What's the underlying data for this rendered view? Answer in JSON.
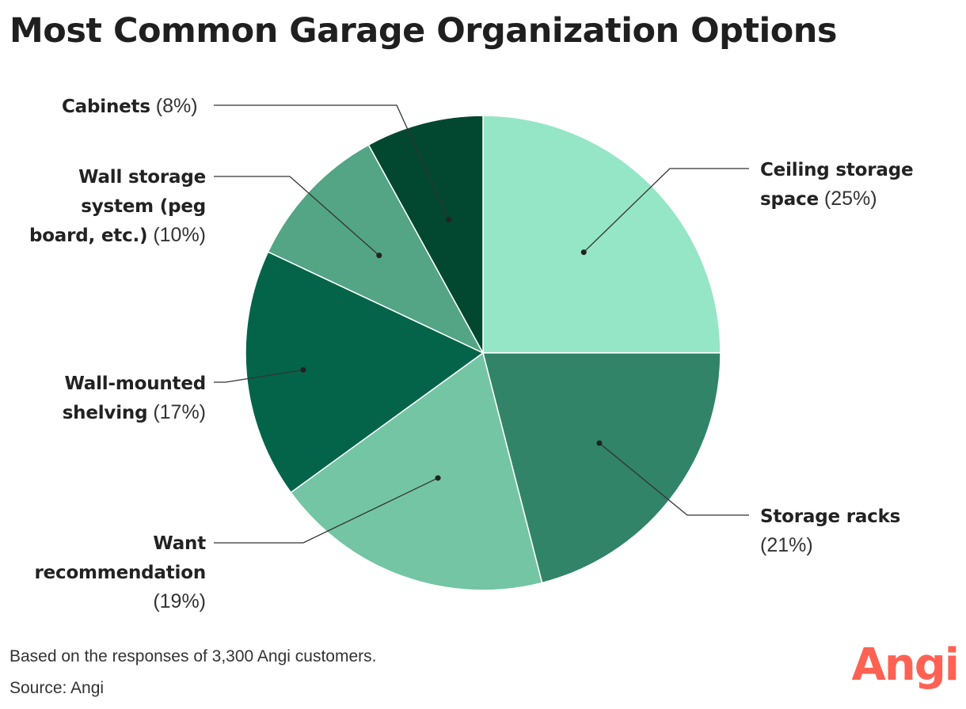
{
  "title": "Most Common Garage Organization Options",
  "chart_data": {
    "type": "pie",
    "slices": [
      {
        "label": "Ceiling storage space",
        "value": 25,
        "value_text": "(25%)",
        "color": "#95e6c6"
      },
      {
        "label": "Storage racks",
        "value": 21,
        "value_text": "(21%)",
        "color": "#318468"
      },
      {
        "label": "Want recommendation",
        "value": 19,
        "value_text": "(19%)",
        "color": "#74c5a4"
      },
      {
        "label": "Wall-mounted shelving",
        "value": 17,
        "value_text": "(17%)",
        "color": "#03644a"
      },
      {
        "label": "Wall storage system (peg board, etc.)",
        "value": 10,
        "value_text": "(10%)",
        "color": "#53a585"
      },
      {
        "label": "Cabinets",
        "value": 8,
        "value_text": "(8%)",
        "color": "#024830"
      }
    ]
  },
  "labels": {
    "ceiling": {
      "line1": "Ceiling storage",
      "line2": "space",
      "pct": "(25%)"
    },
    "racks": {
      "line1": "Storage racks",
      "pct": "(21%)"
    },
    "want": {
      "line1": "Want",
      "line2": "recommendation",
      "pct": "(19%)"
    },
    "wallmounted": {
      "line1": "Wall-mounted",
      "line2": "shelving",
      "pct": "(17%)"
    },
    "wallstorage": {
      "line1": "Wall storage",
      "line2": "system (peg",
      "line3": "board, etc.)",
      "pct": "(10%)"
    },
    "cabinets": {
      "line1": "Cabinets",
      "pct": "(8%)"
    }
  },
  "footer": {
    "note": "Based on the responses of 3,300 Angi customers.",
    "source": "Source: Angi"
  },
  "logo": "Angi"
}
